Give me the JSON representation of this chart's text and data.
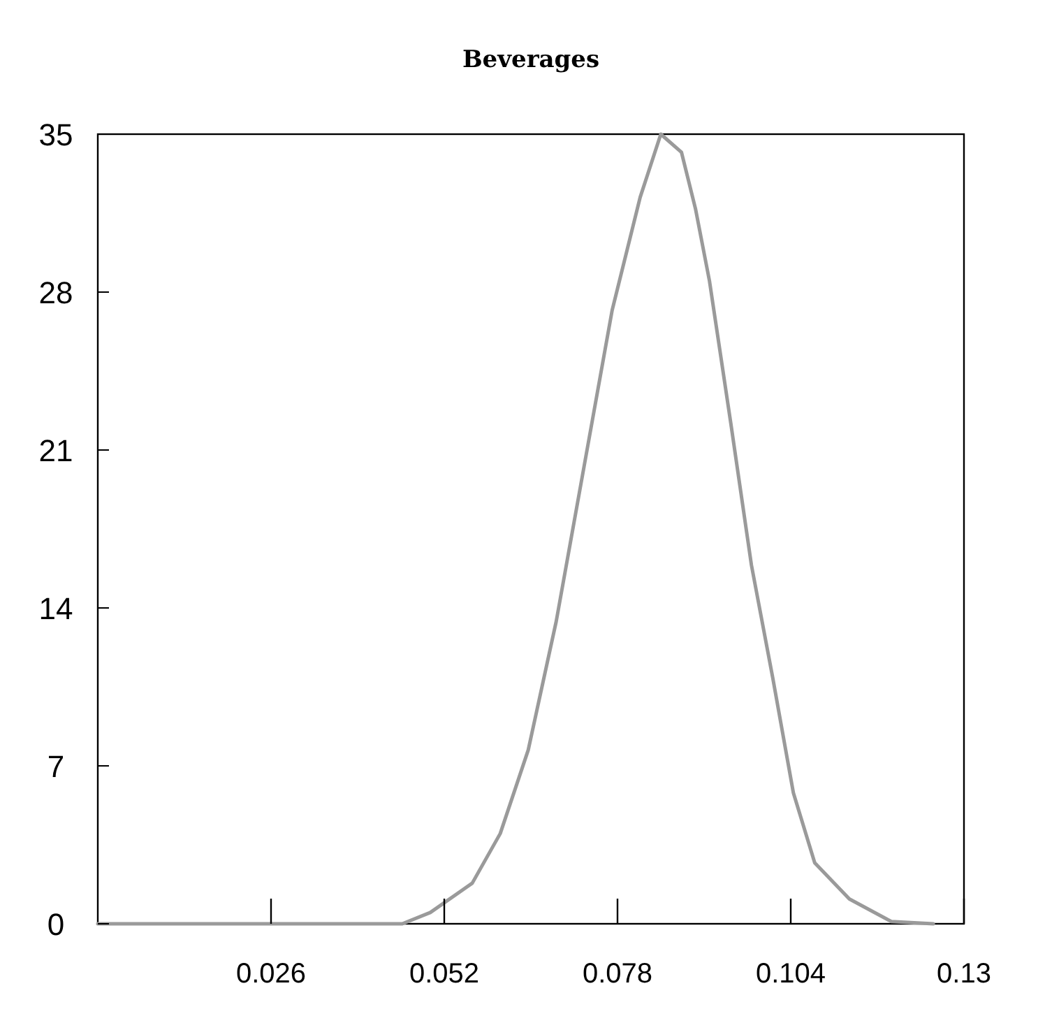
{
  "chart_data": {
    "type": "line",
    "title": "Beverages",
    "x": [
      0,
      0.03,
      0.0457,
      0.0499,
      0.0562,
      0.0604,
      0.0646,
      0.0688,
      0.073,
      0.0772,
      0.0814,
      0.0845,
      0.0876,
      0.0897,
      0.0918,
      0.095,
      0.0981,
      0.1013,
      0.1044,
      0.1076,
      0.1128,
      0.1191,
      0.1254
    ],
    "series": [
      {
        "color": "#9a9a9a",
        "values": [
          0,
          0,
          0,
          0.5,
          1.8,
          4,
          7.7,
          13.4,
          20.3,
          27.2,
          32.2,
          35,
          34.2,
          31.7,
          28.5,
          22.2,
          15.9,
          10.9,
          5.8,
          2.7,
          1.1,
          0.1,
          0
        ]
      }
    ],
    "xlim": [
      0,
      0.13
    ],
    "ylim": [
      0,
      35
    ],
    "xticks": [
      0.026,
      0.052,
      0.078,
      0.104,
      0.13
    ],
    "yticks": [
      0,
      7,
      14,
      21,
      28,
      35
    ],
    "grid": false,
    "marker": "none",
    "line_style": "solid"
  }
}
